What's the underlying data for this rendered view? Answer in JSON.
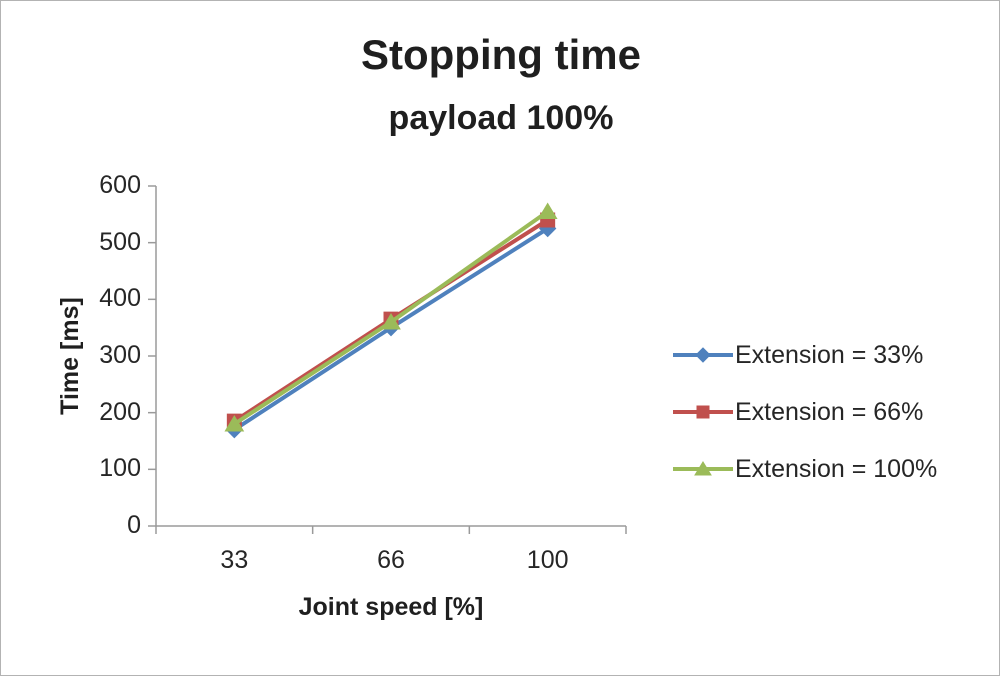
{
  "chart_data": {
    "type": "line",
    "title": "Stopping time",
    "subtitle": "payload 100%",
    "xlabel": "Joint speed [%]",
    "ylabel": "Time [ms]",
    "categories": [
      "33",
      "66",
      "100"
    ],
    "ylim": [
      0,
      600
    ],
    "y_tick_step": 100,
    "grid": false,
    "legend_position": "right",
    "axis_color": "#9a9a9a",
    "series": [
      {
        "name": "Extension = 33%",
        "color": "#4F81BD",
        "marker": "diamond",
        "values": [
          170,
          350,
          525
        ]
      },
      {
        "name": "Extension = 66%",
        "color": "#C0504D",
        "marker": "square",
        "values": [
          185,
          365,
          540
        ]
      },
      {
        "name": "Extension = 100%",
        "color": "#9BBB59",
        "marker": "triangle",
        "values": [
          180,
          360,
          555
        ]
      }
    ]
  }
}
